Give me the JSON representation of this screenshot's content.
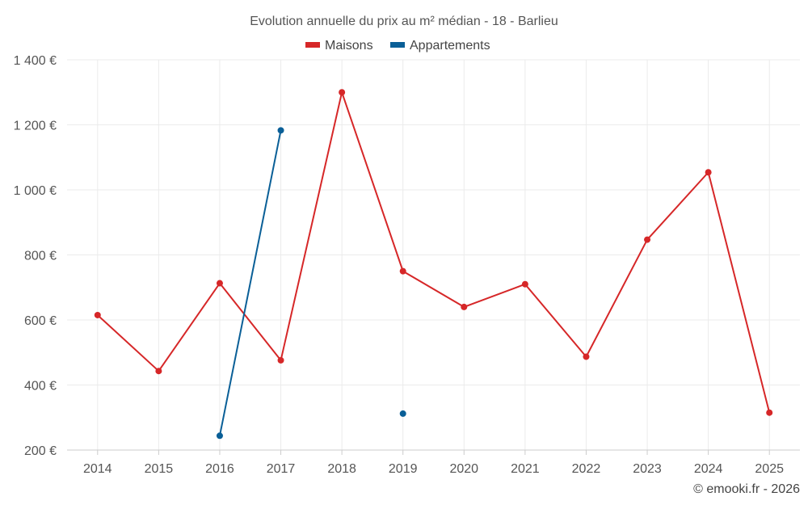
{
  "chart_data": {
    "type": "line",
    "title": "Evolution annuelle du prix au m² médian - 18 - Barlieu",
    "categories": [
      "2014",
      "2015",
      "2016",
      "2017",
      "2018",
      "2019",
      "2020",
      "2021",
      "2022",
      "2023",
      "2024",
      "2025"
    ],
    "y_ticks": [
      200,
      400,
      600,
      800,
      1000,
      1200,
      1400
    ],
    "y_tick_labels": [
      "200 €",
      "400 €",
      "600 €",
      "800 €",
      "1 000 €",
      "1 200 €",
      "1 400 €"
    ],
    "ylim": [
      200,
      1400
    ],
    "grid": true,
    "legend_position": "top-center",
    "series": [
      {
        "name": "Maisons",
        "color": "#d62728",
        "values": [
          615,
          443,
          713,
          476,
          1300,
          750,
          640,
          710,
          487,
          847,
          1054,
          315
        ]
      },
      {
        "name": "Appartements",
        "color": "#0a5f97",
        "values": [
          null,
          null,
          244,
          1183,
          null,
          312,
          null,
          null,
          null,
          null,
          null,
          null
        ]
      }
    ]
  },
  "credit": "© emooki.fr - 2026"
}
